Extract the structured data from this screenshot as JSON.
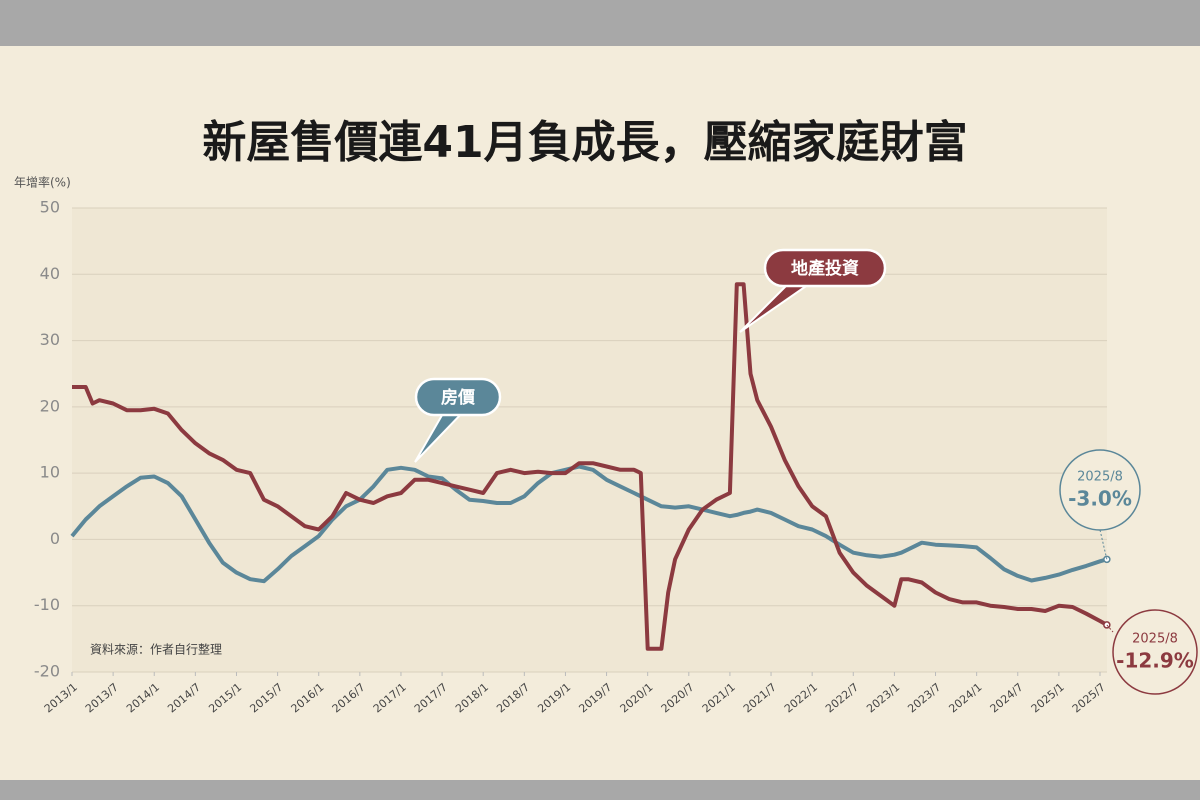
{
  "chart_data": {
    "type": "line",
    "title": "新屋售價連41月負成長，壓縮家庭財富",
    "y_label": "年增率(%)",
    "source": "資料來源：作者自行整理",
    "x": [
      "2013/1",
      "2013/3",
      "2013/4",
      "2013/5",
      "2013/7",
      "2013/9",
      "2013/11",
      "2014/1",
      "2014/3",
      "2014/5",
      "2014/7",
      "2014/9",
      "2014/11",
      "2015/1",
      "2015/3",
      "2015/5",
      "2015/7",
      "2015/9",
      "2015/11",
      "2016/1",
      "2016/3",
      "2016/5",
      "2016/7",
      "2016/9",
      "2016/11",
      "2017/1",
      "2017/3",
      "2017/5",
      "2017/7",
      "2017/9",
      "2017/11",
      "2018/1",
      "2018/3",
      "2018/5",
      "2018/7",
      "2018/9",
      "2018/11",
      "2019/1",
      "2019/3",
      "2019/5",
      "2019/7",
      "2019/9",
      "2019/11",
      "2019/12",
      "2020/1",
      "2020/3",
      "2020/4",
      "2020/5",
      "2020/7",
      "2020/9",
      "2020/11",
      "2021/1",
      "2021/2",
      "2021/3",
      "2021/4",
      "2021/5",
      "2021/7",
      "2021/9",
      "2021/11",
      "2022/1",
      "2022/3",
      "2022/5",
      "2022/7",
      "2022/9",
      "2022/11",
      "2023/1",
      "2023/2",
      "2023/3",
      "2023/5",
      "2023/7",
      "2023/9",
      "2023/11",
      "2024/1",
      "2024/3",
      "2024/5",
      "2024/7",
      "2024/9",
      "2024/11",
      "2025/1",
      "2025/3",
      "2025/5",
      "2025/7",
      "2025/8"
    ],
    "series": [
      {
        "name": "房價",
        "color": "#5b8799",
        "values": [
          0.5,
          3,
          4,
          5,
          6.5,
          8,
          9.3,
          9.5,
          8.5,
          6.5,
          3,
          -0.5,
          -3.5,
          -5,
          -6,
          -6.3,
          -4.5,
          -2.5,
          -1,
          0.5,
          3,
          5,
          6,
          8,
          10.5,
          10.8,
          10.5,
          9.5,
          9.2,
          7.5,
          6,
          5.8,
          5.5,
          5.5,
          6.5,
          8.5,
          10,
          10.5,
          11,
          10.5,
          9,
          8,
          7,
          6.5,
          6,
          5,
          4.9,
          4.8,
          5,
          4.5,
          4,
          3.5,
          3.7,
          4,
          4.2,
          4.5,
          4,
          3,
          2,
          1.5,
          0.5,
          -0.8,
          -2,
          -2.4,
          -2.6,
          -2.3,
          -2,
          -1.5,
          -0.5,
          -0.8,
          -0.9,
          -1,
          -1.2,
          -2.8,
          -4.5,
          -5.5,
          -6.2,
          -5.8,
          -5.3,
          -4.6,
          -4,
          -3.3,
          -3
        ],
        "value_labels": [
          null,
          null,
          null,
          null,
          null,
          null,
          null,
          null,
          null,
          null,
          null,
          null,
          null,
          null,
          null,
          null,
          null,
          null,
          null,
          null,
          null,
          null,
          null,
          null,
          null,
          null,
          null,
          null,
          null,
          null,
          null,
          null,
          null,
          null,
          null,
          null,
          null,
          null,
          null,
          null,
          null,
          null,
          null,
          null,
          null,
          null,
          null,
          null,
          null,
          null,
          null,
          null,
          null,
          null,
          null,
          null,
          null,
          null,
          null,
          null,
          null,
          null,
          null,
          null,
          null,
          null,
          null,
          null,
          null,
          null,
          null,
          null,
          null,
          null,
          null,
          null,
          null,
          null,
          null,
          null,
          null,
          null,
          "-3.0%"
        ]
      },
      {
        "name": "地產投資",
        "color": "#8c3a40",
        "values": [
          23,
          23,
          20.5,
          21,
          20.5,
          19.5,
          19.5,
          19.7,
          19,
          16.5,
          14.5,
          13,
          12,
          10.5,
          10,
          6,
          5,
          3.5,
          2,
          1.5,
          3.5,
          7,
          6,
          5.5,
          6.5,
          7,
          9,
          9,
          8.5,
          8,
          7.5,
          7,
          10,
          10.5,
          10,
          10.2,
          10,
          10,
          11.5,
          11.5,
          11,
          10.5,
          10.5,
          10,
          -16.5,
          -16.5,
          -8,
          -3,
          1.5,
          4.5,
          6,
          7,
          38.5,
          38.5,
          25,
          21,
          17,
          12,
          8,
          5,
          3.5,
          -2,
          -5,
          -7,
          -8.5,
          -10,
          -6,
          -6,
          -6.5,
          -8,
          -9,
          -9.5,
          -9.5,
          -10,
          -10.2,
          -10.5,
          -10.5,
          -10.8,
          -10,
          -10.2,
          -11.2,
          -12.3,
          -12.9
        ],
        "value_labels": [
          null,
          null,
          null,
          null,
          null,
          null,
          null,
          null,
          null,
          null,
          null,
          null,
          null,
          null,
          null,
          null,
          null,
          null,
          null,
          null,
          null,
          null,
          null,
          null,
          null,
          null,
          null,
          null,
          null,
          null,
          null,
          null,
          null,
          null,
          null,
          null,
          null,
          null,
          null,
          null,
          null,
          null,
          null,
          null,
          null,
          null,
          null,
          null,
          null,
          null,
          null,
          null,
          null,
          null,
          null,
          null,
          null,
          null,
          null,
          null,
          null,
          null,
          null,
          null,
          null,
          null,
          null,
          null,
          null,
          null,
          null,
          null,
          null,
          null,
          null,
          null,
          null,
          null,
          null,
          null,
          null,
          null,
          "-12.9%"
        ]
      }
    ],
    "ylim": [
      -20,
      50
    ],
    "yticks": [
      -20,
      -10,
      0,
      10,
      20,
      30,
      40,
      50
    ],
    "grid": true,
    "xticks": [
      "2013/1",
      "2013/7",
      "2014/1",
      "2014/7",
      "2015/1",
      "2015/7",
      "2016/1",
      "2016/7",
      "2017/1",
      "2017/7",
      "2018/1",
      "2018/7",
      "2019/1",
      "2019/7",
      "2020/1",
      "2020/7",
      "2021/1",
      "2021/7",
      "2022/1",
      "2022/7",
      "2023/1",
      "2023/7",
      "2024/1",
      "2024/7",
      "2025/1",
      "2025/7"
    ]
  }
}
